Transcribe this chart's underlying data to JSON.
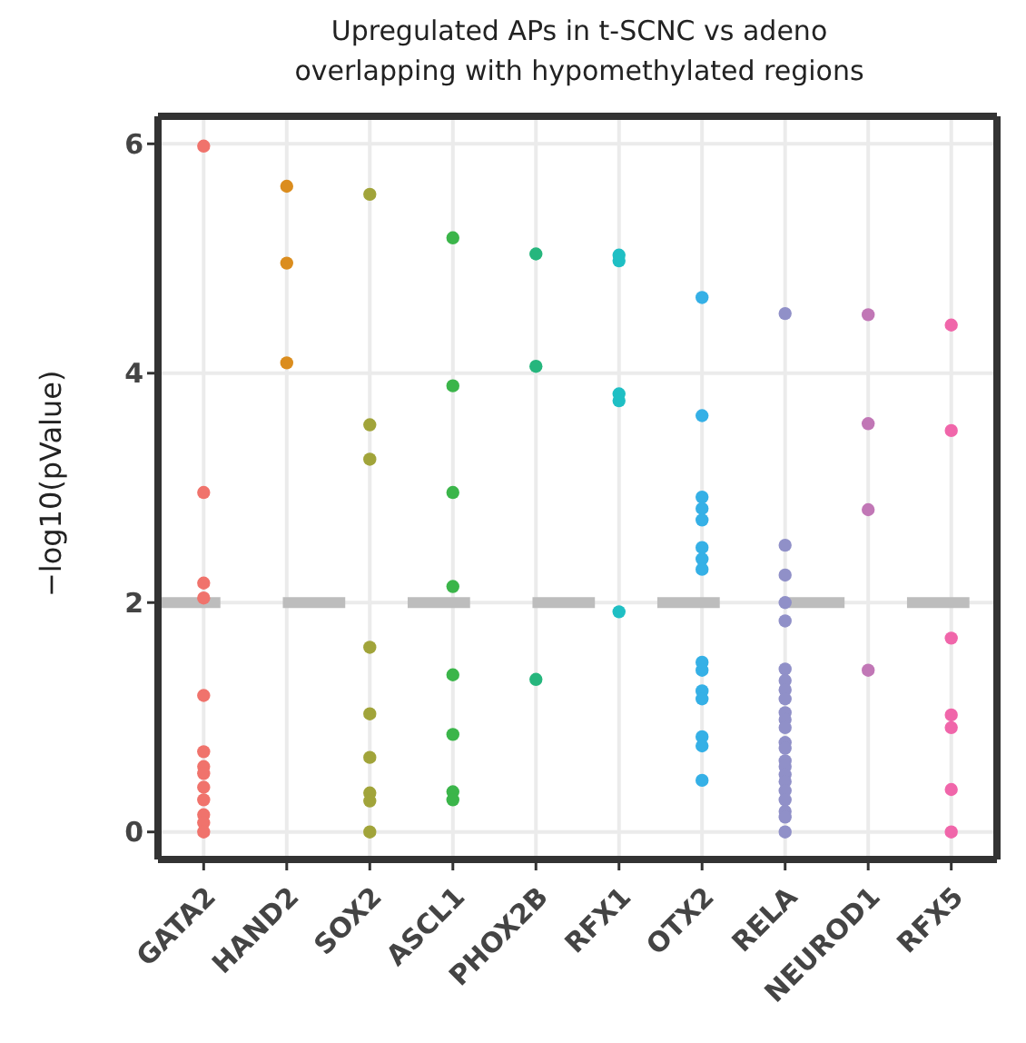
{
  "chart_data": {
    "type": "scatter",
    "title": "Upregulated APs in t-SCNC vs adeno\noverlapping with hypomethylated regions",
    "ylabel": "−log10(pValue)",
    "ylim": [
      -0.24,
      6.24
    ],
    "yticks": [
      0,
      2,
      4,
      6
    ],
    "categories": [
      "GATA2",
      "HAND2",
      "SOX2",
      "ASCL1",
      "PHOX2B",
      "RFX1",
      "OTX2",
      "RELA",
      "NEUROD1",
      "RFX5"
    ],
    "grid": true,
    "marker": "circle",
    "ref_lines": [
      {
        "axis": "y",
        "value": 2,
        "color": "#bdbdbd",
        "line_style": "dashed"
      }
    ],
    "series": [
      {
        "color": "#f0736c",
        "x": [
          "GATA2",
          "GATA2",
          "GATA2",
          "GATA2",
          "GATA2",
          "GATA2",
          "GATA2",
          "GATA2",
          "GATA2",
          "GATA2",
          "GATA2",
          "GATA2",
          "GATA2"
        ],
        "values": [
          5.98,
          2.96,
          2.17,
          2.04,
          1.19,
          0.7,
          0.57,
          0.51,
          0.39,
          0.28,
          0.15,
          0.08,
          0
        ]
      },
      {
        "color": "#db8d1e",
        "x": [
          "HAND2",
          "HAND2",
          "HAND2"
        ],
        "values": [
          5.63,
          4.96,
          4.09
        ]
      },
      {
        "color": "#a1a43a",
        "x": [
          "SOX2",
          "SOX2",
          "SOX2",
          "SOX2",
          "SOX2",
          "SOX2",
          "SOX2",
          "SOX2",
          "SOX2"
        ],
        "values": [
          5.56,
          3.55,
          3.25,
          1.61,
          1.03,
          0.65,
          0.34,
          0.27,
          0
        ]
      },
      {
        "color": "#3bb54a",
        "x": [
          "ASCL1",
          "ASCL1",
          "ASCL1",
          "ASCL1",
          "ASCL1",
          "ASCL1",
          "ASCL1",
          "ASCL1"
        ],
        "values": [
          5.18,
          3.89,
          2.96,
          2.14,
          1.37,
          0.85,
          0.35,
          0.28
        ]
      },
      {
        "color": "#26b67d",
        "x": [
          "PHOX2B",
          "PHOX2B",
          "PHOX2B"
        ],
        "values": [
          5.04,
          4.06,
          1.33
        ]
      },
      {
        "color": "#1fbfc4",
        "x": [
          "RFX1",
          "RFX1",
          "RFX1",
          "RFX1",
          "RFX1"
        ],
        "values": [
          5.03,
          4.98,
          3.82,
          3.76,
          1.92
        ]
      },
      {
        "color": "#35b0e6",
        "x": [
          "OTX2",
          "OTX2",
          "OTX2",
          "OTX2",
          "OTX2",
          "OTX2",
          "OTX2",
          "OTX2",
          "OTX2",
          "OTX2",
          "OTX2",
          "OTX2",
          "OTX2",
          "OTX2",
          "OTX2"
        ],
        "values": [
          4.66,
          3.63,
          2.92,
          2.82,
          2.72,
          2.48,
          2.38,
          2.29,
          1.48,
          1.41,
          1.23,
          1.16,
          0.83,
          0.75,
          0.45
        ]
      },
      {
        "color": "#9090c8",
        "x": [
          "RELA",
          "RELA",
          "RELA",
          "RELA",
          "RELA",
          "RELA",
          "RELA",
          "RELA",
          "RELA",
          "RELA",
          "RELA",
          "RELA",
          "RELA",
          "RELA",
          "RELA",
          "RELA",
          "RELA",
          "RELA",
          "RELA",
          "RELA",
          "RELA",
          "RELA",
          "RELA"
        ],
        "values": [
          4.52,
          2.5,
          2.24,
          2.0,
          1.84,
          1.42,
          1.32,
          1.24,
          1.16,
          1.04,
          0.98,
          0.91,
          0.78,
          0.73,
          0.62,
          0.57,
          0.5,
          0.44,
          0.36,
          0.28,
          0.18,
          0.13,
          0
        ]
      },
      {
        "color": "#c177b6",
        "x": [
          "NEUROD1",
          "NEUROD1",
          "NEUROD1",
          "NEUROD1"
        ],
        "values": [
          4.51,
          3.56,
          2.81,
          1.41
        ]
      },
      {
        "color": "#f066aa",
        "x": [
          "RFX5",
          "RFX5",
          "RFX5",
          "RFX5",
          "RFX5",
          "RFX5",
          "RFX5"
        ],
        "values": [
          4.42,
          3.5,
          1.69,
          1.02,
          0.91,
          0.37,
          0
        ]
      }
    ]
  }
}
